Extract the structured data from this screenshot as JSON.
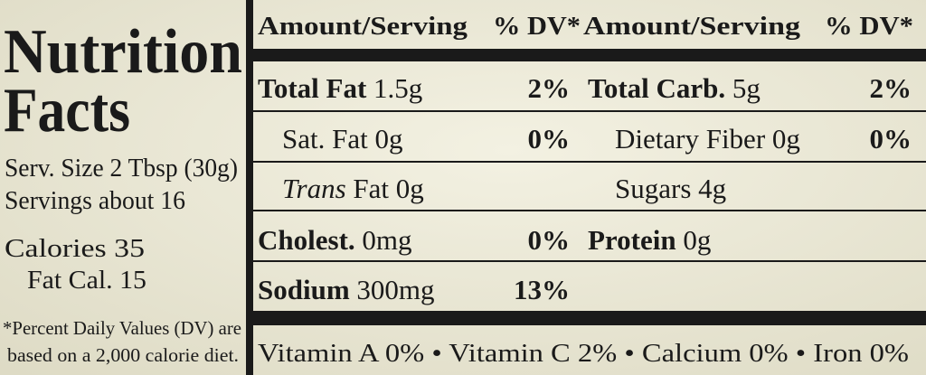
{
  "title": [
    "Nutrition",
    "Facts"
  ],
  "serving": {
    "size": "Serv. Size 2 Tbsp (30g)",
    "servings": "Servings about 16",
    "calories": "Calories 35",
    "fat_calories": "Fat Cal. 15"
  },
  "footnote": [
    "*Percent Daily Values (DV) are",
    "based on a 2,000 calorie diet."
  ],
  "header": [
    "Amount/Serving",
    "% DV*",
    "Amount/Serving",
    "% DV*"
  ],
  "left": [
    {
      "name": "Total Fat",
      "amount": "1.5g",
      "dv": "2%"
    },
    {
      "name": "Sat. Fat",
      "amount": "0g",
      "dv": "0%"
    },
    {
      "italic": "Trans",
      "name": "Fat",
      "amount": "0g"
    },
    {
      "name": "Cholest.",
      "amount": "0mg",
      "dv": "0%"
    },
    {
      "name": "Sodium",
      "amount": "300mg",
      "dv": "13%"
    }
  ],
  "right": [
    {
      "name": "Total Carb.",
      "amount": "5g",
      "dv": "2%"
    },
    {
      "name": "Dietary Fiber",
      "amount": "0g",
      "dv": "0%"
    },
    {
      "name": "Sugars",
      "amount": "4g"
    },
    {
      "name": "Protein",
      "amount": "0g"
    }
  ],
  "vitamins": "Vitamin A 0% • Vitamin C 2% • Calcium 0% • Iron 0%"
}
